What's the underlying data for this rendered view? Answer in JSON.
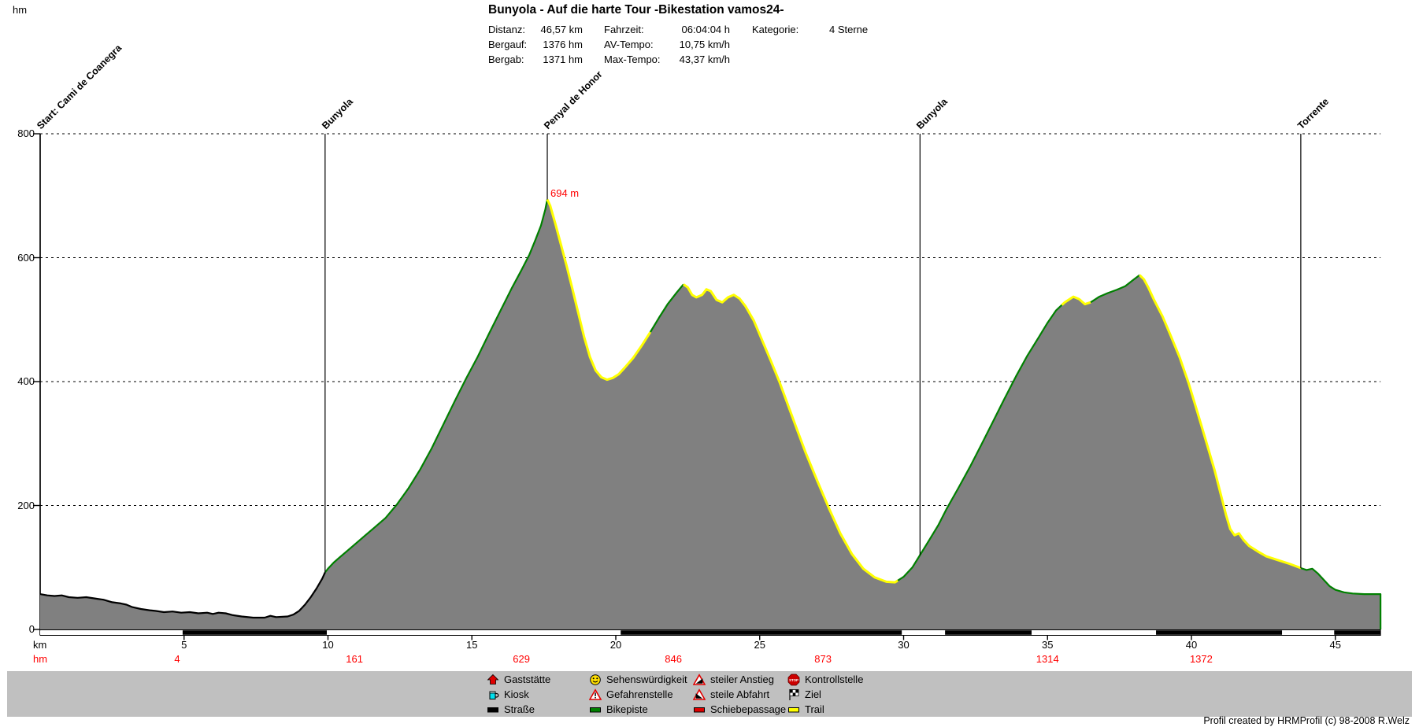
{
  "header": {
    "title": "Bunyola - Auf die harte Tour -Bikestation vamos24-",
    "stats": [
      {
        "label": "Distanz:",
        "value": "46,57 km"
      },
      {
        "label": "Bergauf:",
        "value": "1376 hm"
      },
      {
        "label": "Bergab:",
        "value": "1371 hm"
      },
      {
        "label": "Fahrzeit:",
        "value": "06:04:04 h"
      },
      {
        "label": "AV-Tempo:",
        "value": "10,75 km/h"
      },
      {
        "label": "Max-Tempo:",
        "value": "43,37 km/h"
      },
      {
        "label": "Kategorie:",
        "value": "4 Sterne"
      }
    ]
  },
  "axes": {
    "y_unit_label": "hm",
    "x_unit_label": "km",
    "hm_row_label": "hm",
    "y_ticks": [
      800,
      600,
      400,
      200,
      0
    ],
    "x_ticks": [
      5,
      10,
      15,
      20,
      25,
      30,
      35,
      40,
      45
    ]
  },
  "chart_data": {
    "type": "area",
    "title": "Bunyola - Auf die harte Tour -Bikestation vamos24-",
    "xlabel": "km",
    "ylabel": "hm",
    "xlim": [
      0,
      46.57
    ],
    "ylim": [
      0,
      800
    ],
    "grid": "dashed-horizontal",
    "profile_km_hm": [
      [
        0,
        57
      ],
      [
        0.25,
        55
      ],
      [
        0.5,
        54
      ],
      [
        0.75,
        55
      ],
      [
        1,
        52
      ],
      [
        1.3,
        51
      ],
      [
        1.6,
        52
      ],
      [
        1.9,
        50
      ],
      [
        2.2,
        48
      ],
      [
        2.5,
        44
      ],
      [
        2.8,
        42
      ],
      [
        3,
        40
      ],
      [
        3.2,
        36
      ],
      [
        3.5,
        33
      ],
      [
        3.8,
        31
      ],
      [
        4,
        30
      ],
      [
        4.3,
        28
      ],
      [
        4.6,
        29
      ],
      [
        4.9,
        27
      ],
      [
        5.2,
        28
      ],
      [
        5.5,
        26
      ],
      [
        5.8,
        27
      ],
      [
        6,
        25
      ],
      [
        6.2,
        27
      ],
      [
        6.45,
        26
      ],
      [
        6.7,
        23
      ],
      [
        7,
        21
      ],
      [
        7.4,
        19
      ],
      [
        7.8,
        19
      ],
      [
        8,
        22
      ],
      [
        8.2,
        20
      ],
      [
        8.6,
        21
      ],
      [
        8.8,
        24
      ],
      [
        9,
        30
      ],
      [
        9.2,
        40
      ],
      [
        9.4,
        52
      ],
      [
        9.6,
        66
      ],
      [
        9.8,
        82
      ],
      [
        9.9,
        92
      ],
      [
        10,
        98
      ],
      [
        10.2,
        108
      ],
      [
        10.4,
        116
      ],
      [
        10.7,
        128
      ],
      [
        11,
        140
      ],
      [
        11.3,
        152
      ],
      [
        11.6,
        164
      ],
      [
        12,
        180
      ],
      [
        12.4,
        202
      ],
      [
        12.8,
        228
      ],
      [
        13.2,
        258
      ],
      [
        13.6,
        292
      ],
      [
        14,
        330
      ],
      [
        14.4,
        368
      ],
      [
        14.8,
        405
      ],
      [
        15.2,
        440
      ],
      [
        15.6,
        478
      ],
      [
        16,
        515
      ],
      [
        16.4,
        552
      ],
      [
        16.7,
        578
      ],
      [
        17,
        605
      ],
      [
        17.2,
        628
      ],
      [
        17.4,
        652
      ],
      [
        17.55,
        678
      ],
      [
        17.62,
        694
      ],
      [
        17.72,
        684
      ],
      [
        17.9,
        655
      ],
      [
        18.1,
        620
      ],
      [
        18.3,
        585
      ],
      [
        18.5,
        548
      ],
      [
        18.7,
        510
      ],
      [
        18.9,
        472
      ],
      [
        19.1,
        440
      ],
      [
        19.3,
        418
      ],
      [
        19.5,
        407
      ],
      [
        19.7,
        403
      ],
      [
        19.9,
        406
      ],
      [
        20.1,
        412
      ],
      [
        20.3,
        422
      ],
      [
        20.6,
        438
      ],
      [
        20.9,
        458
      ],
      [
        21.2,
        480
      ],
      [
        21.5,
        503
      ],
      [
        21.8,
        525
      ],
      [
        22.1,
        543
      ],
      [
        22.35,
        557
      ],
      [
        22.5,
        552
      ],
      [
        22.65,
        540
      ],
      [
        22.8,
        536
      ],
      [
        23,
        540
      ],
      [
        23.15,
        549
      ],
      [
        23.3,
        546
      ],
      [
        23.5,
        532
      ],
      [
        23.7,
        528
      ],
      [
        23.9,
        536
      ],
      [
        24.1,
        540
      ],
      [
        24.3,
        534
      ],
      [
        24.5,
        522
      ],
      [
        24.8,
        498
      ],
      [
        25.1,
        465
      ],
      [
        25.4,
        432
      ],
      [
        25.7,
        398
      ],
      [
        26,
        360
      ],
      [
        26.3,
        322
      ],
      [
        26.6,
        285
      ],
      [
        27,
        240
      ],
      [
        27.4,
        196
      ],
      [
        27.8,
        155
      ],
      [
        28.2,
        122
      ],
      [
        28.6,
        98
      ],
      [
        29,
        84
      ],
      [
        29.4,
        77
      ],
      [
        29.7,
        76
      ],
      [
        30,
        85
      ],
      [
        30.3,
        100
      ],
      [
        30.57,
        120
      ],
      [
        30.9,
        145
      ],
      [
        31.2,
        168
      ],
      [
        31.5,
        195
      ],
      [
        31.9,
        228
      ],
      [
        32.3,
        262
      ],
      [
        32.7,
        298
      ],
      [
        33.1,
        335
      ],
      [
        33.5,
        372
      ],
      [
        33.9,
        408
      ],
      [
        34.3,
        442
      ],
      [
        34.7,
        472
      ],
      [
        35,
        495
      ],
      [
        35.3,
        515
      ],
      [
        35.6,
        528
      ],
      [
        35.9,
        537
      ],
      [
        36.1,
        533
      ],
      [
        36.3,
        525
      ],
      [
        36.5,
        528
      ],
      [
        36.8,
        537
      ],
      [
        37.1,
        543
      ],
      [
        37.4,
        548
      ],
      [
        37.7,
        554
      ],
      [
        38,
        565
      ],
      [
        38.2,
        572
      ],
      [
        38.35,
        565
      ],
      [
        38.5,
        552
      ],
      [
        38.7,
        532
      ],
      [
        39,
        505
      ],
      [
        39.3,
        472
      ],
      [
        39.6,
        438
      ],
      [
        39.9,
        398
      ],
      [
        40.2,
        352
      ],
      [
        40.5,
        305
      ],
      [
        40.8,
        258
      ],
      [
        41,
        222
      ],
      [
        41.2,
        185
      ],
      [
        41.35,
        162
      ],
      [
        41.5,
        152
      ],
      [
        41.65,
        155
      ],
      [
        41.8,
        145
      ],
      [
        42,
        135
      ],
      [
        42.3,
        126
      ],
      [
        42.6,
        118
      ],
      [
        43,
        112
      ],
      [
        43.4,
        106
      ],
      [
        43.8,
        99
      ],
      [
        44,
        96
      ],
      [
        44.2,
        98
      ],
      [
        44.4,
        90
      ],
      [
        44.6,
        80
      ],
      [
        44.8,
        70
      ],
      [
        45,
        64
      ],
      [
        45.3,
        60
      ],
      [
        45.6,
        58
      ],
      [
        46,
        57
      ],
      [
        46.57,
        57
      ]
    ],
    "track_color_segments": [
      {
        "from": 0,
        "to": 9.9,
        "color": "#000000",
        "surface": "Straße"
      },
      {
        "from": 9.9,
        "to": 17.62,
        "color": "#008000",
        "surface": "Bikepiste"
      },
      {
        "from": 17.62,
        "to": 21.2,
        "color": "#ffff00",
        "surface": "Trail"
      },
      {
        "from": 21.2,
        "to": 22.35,
        "color": "#008000",
        "surface": "Bikepiste"
      },
      {
        "from": 22.35,
        "to": 29.8,
        "color": "#ffff00",
        "surface": "Trail"
      },
      {
        "from": 29.8,
        "to": 35.5,
        "color": "#008000",
        "surface": "Bikepiste"
      },
      {
        "from": 35.5,
        "to": 36.5,
        "color": "#ffff00",
        "surface": "Trail"
      },
      {
        "from": 36.5,
        "to": 38.2,
        "color": "#008000",
        "surface": "Bikepiste"
      },
      {
        "from": 38.2,
        "to": 43.8,
        "color": "#ffff00",
        "surface": "Trail"
      },
      {
        "from": 43.8,
        "to": 46.57,
        "color": "#008000",
        "surface": "Bikepiste"
      }
    ],
    "waypoints": [
      {
        "km": 0,
        "label": "Start: Cami de Coanegra"
      },
      {
        "km": 9.9,
        "label": "Bunyola"
      },
      {
        "km": 17.62,
        "label": "Penyal de Honor"
      },
      {
        "km": 30.57,
        "label": "Bunyola"
      },
      {
        "km": 43.8,
        "label": "Torrente"
      }
    ],
    "peak_annotation": {
      "km": 17.62,
      "hm": 694,
      "text": "694 m"
    },
    "cumulative_climb_labels": [
      {
        "km": 4.76,
        "text": "4"
      },
      {
        "km": 10.92,
        "text": "161"
      },
      {
        "km": 16.72,
        "text": "629"
      },
      {
        "km": 22.0,
        "text": "846"
      },
      {
        "km": 27.2,
        "text": "873"
      },
      {
        "km": 35.0,
        "text": "1314"
      },
      {
        "km": 40.34,
        "text": "1372"
      }
    ],
    "road_bar_segments": [
      {
        "from": 0,
        "to": 4.95,
        "color": "#ffffff"
      },
      {
        "from": 4.95,
        "to": 9.96,
        "color": "#000000"
      },
      {
        "from": 9.96,
        "to": 20.17,
        "color": "#ffffff"
      },
      {
        "from": 20.17,
        "to": 29.94,
        "color": "#000000"
      },
      {
        "from": 29.94,
        "to": 31.44,
        "color": "#ffffff"
      },
      {
        "from": 31.44,
        "to": 34.45,
        "color": "#000000"
      },
      {
        "from": 34.45,
        "to": 38.77,
        "color": "#ffffff"
      },
      {
        "from": 38.77,
        "to": 43.15,
        "color": "#000000"
      },
      {
        "from": 43.15,
        "to": 44.96,
        "color": "#ffffff"
      },
      {
        "from": 44.96,
        "to": 46.57,
        "color": "#000000"
      }
    ]
  },
  "legend": {
    "columns": [
      [
        {
          "icon": "house-icon",
          "label": "Gaststätte"
        },
        {
          "icon": "mug-icon",
          "label": "Kiosk"
        },
        {
          "icon": "road-bar-icon",
          "label": "Straße"
        }
      ],
      [
        {
          "icon": "smiley-icon",
          "label": "Sehenswürdigkeit"
        },
        {
          "icon": "warning-triangle-icon",
          "label": "Gefahrenstelle"
        },
        {
          "icon": "bikepiste-bar-icon",
          "label": "Bikepiste"
        }
      ],
      [
        {
          "icon": "steep-ascent-icon",
          "label": "steiler Anstieg"
        },
        {
          "icon": "steep-descent-icon",
          "label": "steile Abfahrt"
        },
        {
          "icon": "push-section-bar-icon",
          "label": "Schiebepassage"
        }
      ],
      [
        {
          "icon": "stop-sign-icon",
          "label": "Kontrollstelle"
        },
        {
          "icon": "finish-flag-icon",
          "label": "Ziel"
        },
        {
          "icon": "trail-bar-icon",
          "label": "Trail"
        }
      ]
    ]
  },
  "footer": {
    "credit": "Profil created by HRMProfil (c) 98-2008 R.Welz"
  },
  "colors": {
    "profile_fill": "#808080",
    "grid_line": "#000000",
    "annotation_red": "#ff0000",
    "legend_band": "#c0c0c0",
    "bikepiste_green": "#008000",
    "trail_yellow": "#ffff00",
    "strasse_black": "#000000"
  }
}
